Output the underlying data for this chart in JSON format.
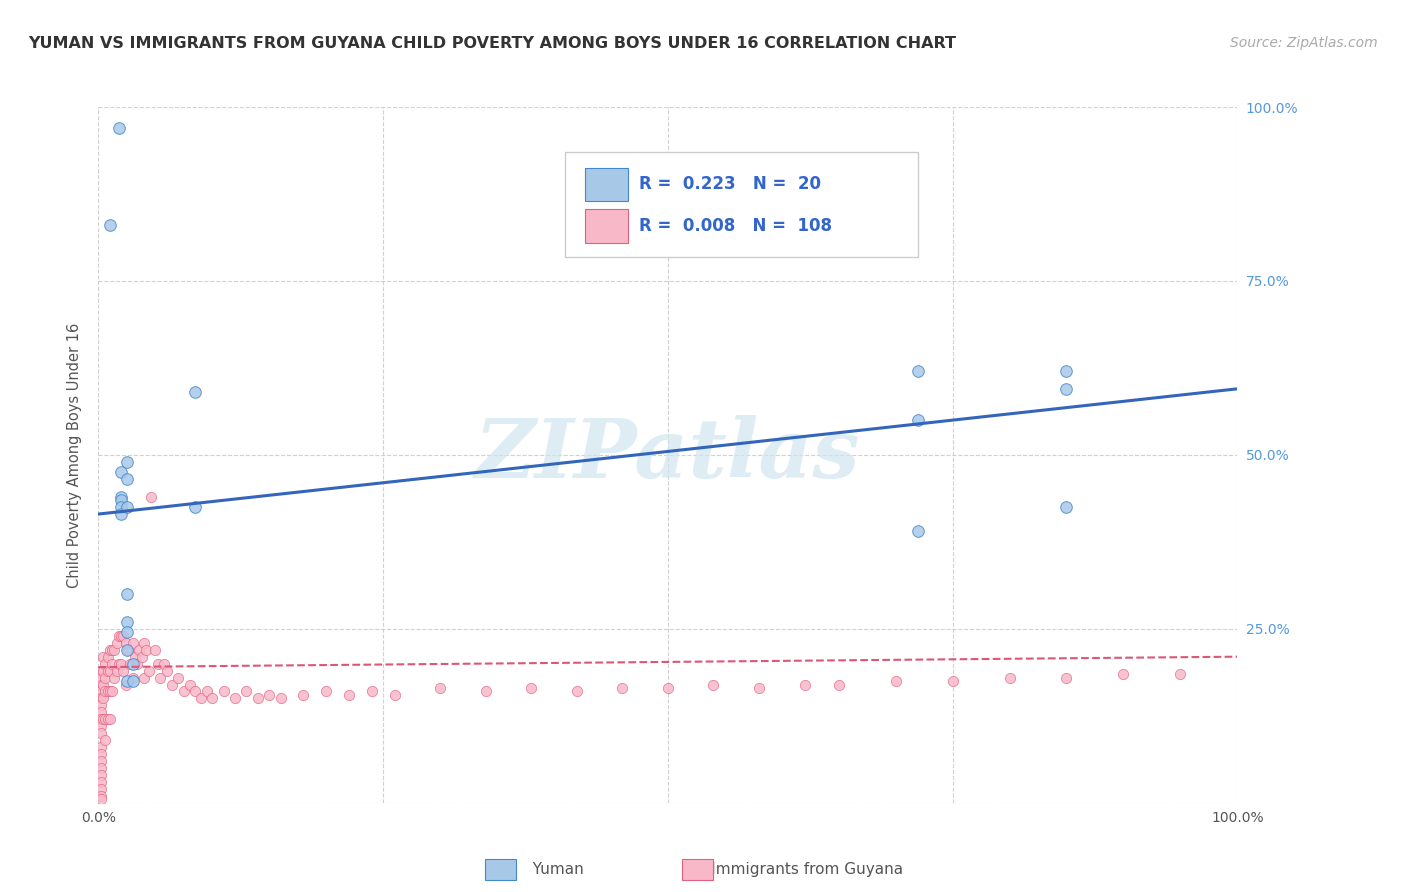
{
  "title": "YUMAN VS IMMIGRANTS FROM GUYANA CHILD POVERTY AMONG BOYS UNDER 16 CORRELATION CHART",
  "source": "Source: ZipAtlas.com",
  "ylabel": "Child Poverty Among Boys Under 16",
  "legend_blue_R": "0.223",
  "legend_blue_N": "20",
  "legend_pink_R": "0.008",
  "legend_pink_N": "108",
  "legend_label_blue": "Yuman",
  "legend_label_pink": "Immigrants from Guyana",
  "blue_scatter_color": "#a8c8e8",
  "blue_edge_color": "#4488cc",
  "pink_scatter_color": "#f9b8c8",
  "pink_edge_color": "#e06080",
  "blue_line_color": "#3366bb",
  "pink_line_color": "#dd5577",
  "watermark": "ZIPatlas",
  "watermark_color": "#d0e4f0",
  "blue_scatter_x": [
    0.018,
    0.01,
    0.02,
    0.025,
    0.025,
    0.02,
    0.02,
    0.02,
    0.02,
    0.085,
    0.085,
    0.025,
    0.025,
    0.025,
    0.025,
    0.025,
    0.025,
    0.03,
    0.03
  ],
  "blue_scatter_y": [
    0.97,
    0.83,
    0.475,
    0.49,
    0.465,
    0.44,
    0.435,
    0.425,
    0.415,
    0.425,
    0.59,
    0.425,
    0.3,
    0.26,
    0.245,
    0.22,
    0.175,
    0.175,
    0.2
  ],
  "blue_scatter_x2": [
    0.72,
    0.72,
    0.72,
    0.85,
    0.85,
    0.85
  ],
  "blue_scatter_y2": [
    0.62,
    0.55,
    0.39,
    0.595,
    0.62,
    0.425
  ],
  "pink_scatter_x": [
    0.002,
    0.002,
    0.002,
    0.002,
    0.002,
    0.002,
    0.002,
    0.002,
    0.002,
    0.002,
    0.002,
    0.002,
    0.002,
    0.002,
    0.002,
    0.002,
    0.002,
    0.002,
    0.002,
    0.004,
    0.004,
    0.004,
    0.004,
    0.004,
    0.006,
    0.006,
    0.006,
    0.006,
    0.006,
    0.008,
    0.008,
    0.008,
    0.008,
    0.01,
    0.01,
    0.01,
    0.01,
    0.012,
    0.012,
    0.012,
    0.014,
    0.014,
    0.016,
    0.016,
    0.018,
    0.018,
    0.02,
    0.02,
    0.022,
    0.022,
    0.024,
    0.024,
    0.026,
    0.028,
    0.03,
    0.03,
    0.032,
    0.034,
    0.036,
    0.038,
    0.04,
    0.04,
    0.042,
    0.044,
    0.046,
    0.05,
    0.052,
    0.054,
    0.058,
    0.06,
    0.065,
    0.07,
    0.075,
    0.08,
    0.085,
    0.09,
    0.095,
    0.1,
    0.11,
    0.12,
    0.13,
    0.14,
    0.15,
    0.16,
    0.18,
    0.2,
    0.22,
    0.24,
    0.26,
    0.3,
    0.34,
    0.38,
    0.42,
    0.46,
    0.5,
    0.54,
    0.58,
    0.62,
    0.65,
    0.7,
    0.75,
    0.8,
    0.85,
    0.9,
    0.95
  ],
  "pink_scatter_y": [
    0.19,
    0.18,
    0.17,
    0.16,
    0.15,
    0.14,
    0.13,
    0.12,
    0.11,
    0.1,
    0.08,
    0.07,
    0.06,
    0.05,
    0.04,
    0.03,
    0.02,
    0.01,
    0.005,
    0.21,
    0.19,
    0.17,
    0.15,
    0.12,
    0.2,
    0.18,
    0.16,
    0.12,
    0.09,
    0.21,
    0.19,
    0.16,
    0.12,
    0.22,
    0.19,
    0.16,
    0.12,
    0.22,
    0.2,
    0.16,
    0.22,
    0.18,
    0.23,
    0.19,
    0.24,
    0.2,
    0.24,
    0.2,
    0.24,
    0.19,
    0.23,
    0.17,
    0.22,
    0.2,
    0.23,
    0.18,
    0.21,
    0.2,
    0.22,
    0.21,
    0.23,
    0.18,
    0.22,
    0.19,
    0.44,
    0.22,
    0.2,
    0.18,
    0.2,
    0.19,
    0.17,
    0.18,
    0.16,
    0.17,
    0.16,
    0.15,
    0.16,
    0.15,
    0.16,
    0.15,
    0.16,
    0.15,
    0.155,
    0.15,
    0.155,
    0.16,
    0.155,
    0.16,
    0.155,
    0.165,
    0.16,
    0.165,
    0.16,
    0.165,
    0.165,
    0.17,
    0.165,
    0.17,
    0.17,
    0.175,
    0.175,
    0.18,
    0.18,
    0.185,
    0.185
  ],
  "blue_trendline_x": [
    0.0,
    1.0
  ],
  "blue_trendline_y": [
    0.415,
    0.595
  ],
  "pink_trendline_x": [
    0.0,
    1.0
  ],
  "pink_trendline_y": [
    0.195,
    0.21
  ],
  "xlim": [
    0.0,
    1.0
  ],
  "ylim": [
    0.0,
    1.0
  ],
  "figsize": [
    14.06,
    8.92
  ],
  "dpi": 100
}
